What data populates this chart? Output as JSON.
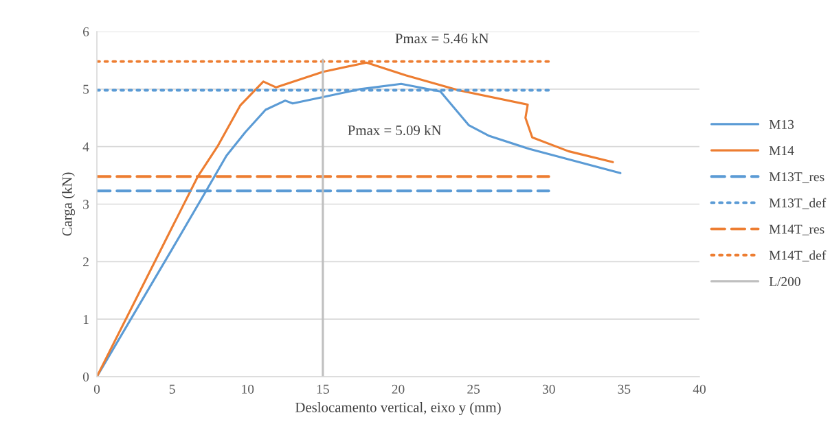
{
  "chart_data": {
    "type": "line",
    "xlabel": "Deslocamento vertical, eixo y (mm)",
    "ylabel": "Carga (kN)",
    "xlim": [
      0,
      40
    ],
    "xticks": [
      0,
      5,
      10,
      15,
      20,
      25,
      30,
      35,
      40
    ],
    "ylim": [
      0,
      6
    ],
    "yticks": [
      0,
      1,
      2,
      3,
      4,
      5,
      6
    ],
    "grid": "y",
    "legend": "right",
    "series": [
      {
        "name": "M13",
        "color": "#5b9bd5",
        "line_style": "solid",
        "x": [
          0,
          5,
          7.25,
          8.6,
          9.85,
          11.2,
          12.5,
          13.0,
          15.0,
          17.5,
          20.2,
          22.8,
          23.7,
          24.7,
          26.0,
          28.7,
          34.75
        ],
        "values": [
          0,
          2.22,
          3.23,
          3.84,
          4.25,
          4.64,
          4.8,
          4.75,
          4.86,
          5.0,
          5.09,
          4.96,
          4.68,
          4.37,
          4.19,
          3.96,
          3.54
        ]
      },
      {
        "name": "M14",
        "color": "#ed7d31",
        "line_style": "solid",
        "x": [
          0,
          5,
          6.7,
          8.0,
          9.53,
          11.05,
          11.9,
          15.0,
          17.9,
          20.5,
          24.0,
          28.6,
          28.45,
          28.9,
          31.3,
          34.25
        ],
        "values": [
          0,
          2.6,
          3.48,
          4.0,
          4.72,
          5.13,
          5.03,
          5.3,
          5.46,
          5.24,
          4.98,
          4.73,
          4.5,
          4.16,
          3.92,
          3.73
        ]
      },
      {
        "name": "M13T_res",
        "color": "#5b9bd5",
        "line_style": "dashed",
        "x": [
          0,
          30
        ],
        "values": [
          3.23,
          3.23
        ]
      },
      {
        "name": "M13T_def",
        "color": "#5b9bd5",
        "line_style": "dotted",
        "x": [
          0,
          30
        ],
        "values": [
          4.98,
          4.98
        ]
      },
      {
        "name": "M14T_res",
        "color": "#ed7d31",
        "line_style": "dashed",
        "x": [
          0,
          30
        ],
        "values": [
          3.48,
          3.48
        ]
      },
      {
        "name": "M14T_def",
        "color": "#ed7d31",
        "line_style": "dotted",
        "x": [
          0,
          30
        ],
        "values": [
          5.48,
          5.48
        ]
      },
      {
        "name": "L/200",
        "color": "#bfbfbf",
        "line_style": "solid",
        "x": [
          15,
          15
        ],
        "values": [
          0,
          5.51
        ]
      }
    ],
    "annotations": [
      {
        "text": "Pmax = 5.46 kN",
        "x": 17.9,
        "y": 5.46
      },
      {
        "text": "Pmax = 5.09 kN",
        "x": 20.2,
        "y": 5.09
      }
    ]
  }
}
